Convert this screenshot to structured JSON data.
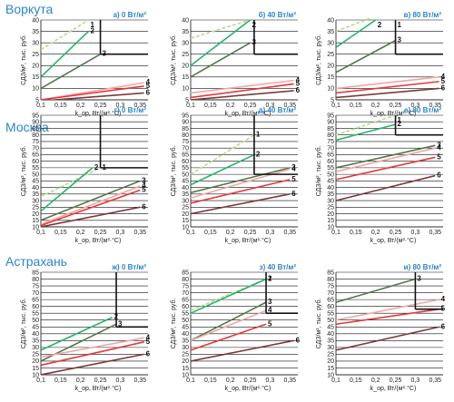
{
  "cities": [
    {
      "name": "Воркута"
    },
    {
      "name": "Москва"
    },
    {
      "name": "Астрахань"
    }
  ],
  "axis_text": {
    "ylabel": "СДЗ/м², тыс. руб.",
    "xlabel": "k_ор, Вт/(м²·°С)"
  },
  "colors": {
    "c1": "#b8dc8c",
    "c2": "#22b36a",
    "c3": "#4f7a4a",
    "c4": "#f2a6a6",
    "c5": "#e5383b",
    "c6": "#7a3b3b",
    "frame": "#111111",
    "grid": "#111111",
    "title": "#2a86c8"
  },
  "chart_data": [
    {
      "type": "line",
      "panel": "а",
      "title": "а) 0 Вт/м²",
      "city": "Воркута",
      "xlim": [
        0.1,
        0.37
      ],
      "ylim": [
        5,
        40
      ],
      "xticks": [
        0.1,
        0.15,
        0.2,
        0.25,
        0.3,
        0.35
      ],
      "yticks": [
        5,
        10,
        15,
        20,
        25,
        30,
        35,
        40
      ],
      "series": [
        {
          "name": "1",
          "x": [
            0.1,
            0.22
          ],
          "y": [
            27,
            40
          ],
          "color": "c1",
          "dash": true
        },
        {
          "name": "2",
          "x": [
            0.1,
            0.22
          ],
          "y": [
            15,
            35
          ],
          "color": "c2"
        },
        {
          "name": "3",
          "x": [
            0.1,
            0.25
          ],
          "y": [
            10,
            25
          ],
          "color": "c3"
        },
        {
          "name": "4",
          "x": [
            0.1,
            0.36
          ],
          "y": [
            5,
            12.5
          ],
          "color": "c4"
        },
        {
          "name": "5",
          "x": [
            0.1,
            0.36
          ],
          "y": [
            5,
            11
          ],
          "color": "c5"
        },
        {
          "name": "6",
          "x": [
            0.1,
            0.36
          ],
          "y": [
            4.5,
            8
          ],
          "color": "c6"
        }
      ],
      "marker": {
        "x": 0.25,
        "y": 25
      }
    },
    {
      "type": "line",
      "panel": "б",
      "title": "б) 40 Вт/м²",
      "city": "Воркута",
      "xlim": [
        0.1,
        0.37
      ],
      "ylim": [
        5,
        40
      ],
      "xticks": [
        0.1,
        0.15,
        0.2,
        0.25,
        0.3,
        0.35
      ],
      "yticks": [
        5,
        10,
        15,
        20,
        25,
        30,
        35,
        40
      ],
      "series": [
        {
          "name": "1",
          "x": [
            0.1,
            0.25
          ],
          "y": [
            32,
            40
          ],
          "color": "c1",
          "dash": true
        },
        {
          "name": "2",
          "x": [
            0.1,
            0.25
          ],
          "y": [
            20,
            40
          ],
          "color": "c2"
        },
        {
          "name": "3",
          "x": [
            0.1,
            0.25
          ],
          "y": [
            15,
            30
          ],
          "color": "c3"
        },
        {
          "name": "4",
          "x": [
            0.1,
            0.36
          ],
          "y": [
            8,
            13.5
          ],
          "color": "c4"
        },
        {
          "name": "5",
          "x": [
            0.1,
            0.36
          ],
          "y": [
            6,
            12
          ],
          "color": "c5"
        },
        {
          "name": "6",
          "x": [
            0.1,
            0.36
          ],
          "y": [
            5,
            9
          ],
          "color": "c6"
        }
      ],
      "marker": {
        "x": 0.26,
        "y": 25
      }
    },
    {
      "type": "line",
      "panel": "в",
      "title": "в) 80 Вт/м²",
      "city": "Воркута",
      "xlim": [
        0.1,
        0.37
      ],
      "ylim": [
        5,
        40
      ],
      "xticks": [
        0.1,
        0.15,
        0.2,
        0.25,
        0.3,
        0.35
      ],
      "yticks": [
        5,
        10,
        15,
        20,
        25,
        30,
        35,
        40
      ],
      "series": [
        {
          "name": "1",
          "x": [
            0.1,
            0.25
          ],
          "y": [
            35,
            45
          ],
          "color": "c1",
          "dash": true
        },
        {
          "name": "2",
          "x": [
            0.1,
            0.2
          ],
          "y": [
            28,
            40
          ],
          "color": "c2"
        },
        {
          "name": "3",
          "x": [
            0.1,
            0.25
          ],
          "y": [
            17,
            31
          ],
          "color": "c3"
        },
        {
          "name": "4",
          "x": [
            0.1,
            0.36
          ],
          "y": [
            10,
            15
          ],
          "color": "c4"
        },
        {
          "name": "5",
          "x": [
            0.1,
            0.36
          ],
          "y": [
            8,
            13
          ],
          "color": "c5"
        },
        {
          "name": "6",
          "x": [
            0.1,
            0.36
          ],
          "y": [
            6,
            10
          ],
          "color": "c6"
        }
      ],
      "marker": {
        "x": 0.25,
        "y": 25
      }
    },
    {
      "type": "line",
      "panel": "г",
      "title": "г) 0 Вт/м²",
      "city": "Москва",
      "xlim": [
        0.1,
        0.37
      ],
      "ylim": [
        10,
        95
      ],
      "xticks": [
        0.1,
        0.15,
        0.2,
        0.25,
        0.3,
        0.35
      ],
      "yticks": [
        10,
        15,
        20,
        25,
        30,
        35,
        40,
        45,
        50,
        55,
        60,
        65,
        70,
        75,
        80,
        85,
        90,
        95
      ],
      "series": [
        {
          "name": "1",
          "x": [
            0.1,
            0.25
          ],
          "y": [
            33,
            55
          ],
          "color": "c1",
          "dash": true
        },
        {
          "name": "2",
          "x": [
            0.1,
            0.23
          ],
          "y": [
            22,
            55
          ],
          "color": "c2"
        },
        {
          "name": "3",
          "x": [
            0.1,
            0.35
          ],
          "y": [
            15,
            45
          ],
          "color": "c3"
        },
        {
          "name": "4",
          "x": [
            0.1,
            0.35
          ],
          "y": [
            12,
            41
          ],
          "color": "c4"
        },
        {
          "name": "5",
          "x": [
            0.1,
            0.35
          ],
          "y": [
            11,
            38
          ],
          "color": "c5"
        },
        {
          "name": "6",
          "x": [
            0.1,
            0.35
          ],
          "y": [
            10,
            25
          ],
          "color": "c6"
        }
      ],
      "marker": {
        "x": 0.25,
        "y": 55
      }
    },
    {
      "type": "line",
      "panel": "д",
      "title": "д) 40 Вт/м²",
      "city": "Москва",
      "xlim": [
        0.1,
        0.37
      ],
      "ylim": [
        10,
        95
      ],
      "xticks": [
        0.1,
        0.15,
        0.2,
        0.25,
        0.3,
        0.35
      ],
      "yticks": [
        10,
        15,
        20,
        25,
        30,
        35,
        40,
        45,
        50,
        55,
        60,
        65,
        70,
        75,
        80,
        85,
        90,
        95
      ],
      "series": [
        {
          "name": "1",
          "x": [
            0.1,
            0.26
          ],
          "y": [
            50,
            80
          ],
          "color": "c1",
          "dash": true
        },
        {
          "name": "2",
          "x": [
            0.1,
            0.26
          ],
          "y": [
            42,
            65
          ],
          "color": "c2"
        },
        {
          "name": "3",
          "x": [
            0.1,
            0.35
          ],
          "y": [
            36,
            55
          ],
          "color": "c3"
        },
        {
          "name": "4",
          "x": [
            0.1,
            0.35
          ],
          "y": [
            32,
            54
          ],
          "color": "c4"
        },
        {
          "name": "5",
          "x": [
            0.1,
            0.35
          ],
          "y": [
            28,
            46
          ],
          "color": "c5"
        },
        {
          "name": "6",
          "x": [
            0.1,
            0.35
          ],
          "y": [
            20,
            35
          ],
          "color": "c6"
        }
      ],
      "marker": {
        "x": 0.26,
        "y": 50
      }
    },
    {
      "type": "line",
      "panel": "е",
      "title": "е) 80 Вт/м²",
      "city": "Москва",
      "xlim": [
        0.1,
        0.37
      ],
      "ylim": [
        10,
        95
      ],
      "xticks": [
        0.1,
        0.15,
        0.2,
        0.25,
        0.3,
        0.35
      ],
      "yticks": [
        10,
        15,
        20,
        25,
        30,
        35,
        40,
        45,
        50,
        55,
        60,
        65,
        70,
        75,
        80,
        85,
        90,
        95
      ],
      "series": [
        {
          "name": "1",
          "x": [
            0.1,
            0.25
          ],
          "y": [
            80,
            95
          ],
          "color": "c1",
          "dash": true
        },
        {
          "name": "2",
          "x": [
            0.1,
            0.25
          ],
          "y": [
            76,
            88
          ],
          "color": "c2"
        },
        {
          "name": "3",
          "x": [
            0.1,
            0.35
          ],
          "y": [
            55,
            72
          ],
          "color": "c3"
        },
        {
          "name": "4",
          "x": [
            0.1,
            0.35
          ],
          "y": [
            52,
            70
          ],
          "color": "c4"
        },
        {
          "name": "5",
          "x": [
            0.1,
            0.35
          ],
          "y": [
            46,
            63
          ],
          "color": "c5"
        },
        {
          "name": "6",
          "x": [
            0.1,
            0.35
          ],
          "y": [
            30,
            49
          ],
          "color": "c6"
        }
      ],
      "marker": {
        "x": 0.25,
        "y": 80
      }
    },
    {
      "type": "line",
      "panel": "ж",
      "title": "ж) 0 Вт/м²",
      "city": "Астрахань",
      "xlim": [
        0.1,
        0.37
      ],
      "ylim": [
        10,
        85
      ],
      "xticks": [
        0.1,
        0.15,
        0.2,
        0.25,
        0.3,
        0.35
      ],
      "yticks": [
        10,
        15,
        20,
        25,
        30,
        35,
        40,
        45,
        50,
        55,
        60,
        65,
        70,
        75,
        80,
        85
      ],
      "series": [
        {
          "name": "2",
          "x": [
            0.1,
            0.28
          ],
          "y": [
            28,
            52
          ],
          "color": "c2"
        },
        {
          "name": "3",
          "x": [
            0.1,
            0.29
          ],
          "y": [
            20,
            47
          ],
          "color": "c3"
        },
        {
          "name": "4",
          "x": [
            0.1,
            0.36
          ],
          "y": [
            23,
            37
          ],
          "color": "c4"
        },
        {
          "name": "5",
          "x": [
            0.1,
            0.36
          ],
          "y": [
            17,
            34
          ],
          "color": "c5"
        },
        {
          "name": "6",
          "x": [
            0.1,
            0.36
          ],
          "y": [
            10,
            25
          ],
          "color": "c6"
        }
      ],
      "marker": {
        "x": 0.29,
        "y": 45
      }
    },
    {
      "type": "line",
      "panel": "з",
      "title": "з) 40 Вт/м²",
      "city": "Астрахань",
      "xlim": [
        0.1,
        0.37
      ],
      "ylim": [
        10,
        85
      ],
      "xticks": [
        0.1,
        0.15,
        0.2,
        0.25,
        0.3,
        0.35
      ],
      "yticks": [
        10,
        15,
        20,
        25,
        30,
        35,
        40,
        45,
        50,
        55,
        60,
        65,
        70,
        75,
        80,
        85
      ],
      "series": [
        {
          "name": "1",
          "x": [
            0.1,
            0.29
          ],
          "y": [
            57,
            80
          ],
          "color": "c1",
          "dash": true
        },
        {
          "name": "2",
          "x": [
            0.1,
            0.29
          ],
          "y": [
            55,
            80
          ],
          "color": "c2"
        },
        {
          "name": "3",
          "x": [
            0.1,
            0.29
          ],
          "y": [
            35,
            63
          ],
          "color": "c3"
        },
        {
          "name": "4",
          "x": [
            0.1,
            0.29
          ],
          "y": [
            35,
            57
          ],
          "color": "c4"
        },
        {
          "name": "5",
          "x": [
            0.1,
            0.29
          ],
          "y": [
            28,
            47
          ],
          "color": "c5"
        },
        {
          "name": "6",
          "x": [
            0.1,
            0.36
          ],
          "y": [
            20,
            35
          ],
          "color": "c6"
        }
      ],
      "marker": {
        "x": 0.29,
        "y": 55
      }
    },
    {
      "type": "line",
      "panel": "и",
      "title": "и) 80 Вт/м²",
      "city": "Астрахань",
      "xlim": [
        0.1,
        0.37
      ],
      "ylim": [
        10,
        85
      ],
      "xticks": [
        0.1,
        0.15,
        0.2,
        0.25,
        0.3,
        0.35
      ],
      "yticks": [
        10,
        15,
        20,
        25,
        30,
        35,
        40,
        45,
        50,
        55,
        60,
        65,
        70,
        75,
        80,
        85
      ],
      "series": [
        {
          "name": "3",
          "x": [
            0.1,
            0.3
          ],
          "y": [
            63,
            80
          ],
          "color": "c3"
        },
        {
          "name": "4",
          "x": [
            0.1,
            0.36
          ],
          "y": [
            50,
            65
          ],
          "color": "c4"
        },
        {
          "name": "5",
          "x": [
            0.1,
            0.36
          ],
          "y": [
            47,
            58
          ],
          "color": "c5"
        },
        {
          "name": "6",
          "x": [
            0.1,
            0.36
          ],
          "y": [
            28,
            45
          ],
          "color": "c6"
        }
      ],
      "marker": {
        "x": 0.3,
        "y": 58
      }
    }
  ]
}
